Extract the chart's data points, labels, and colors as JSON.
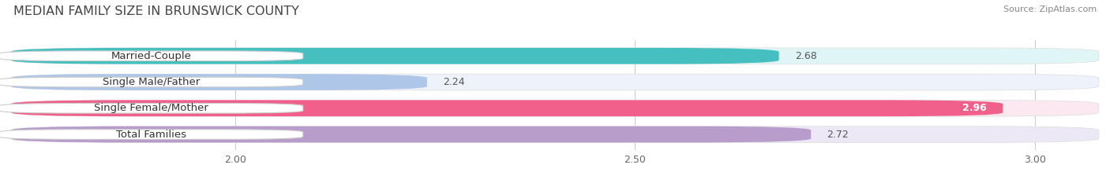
{
  "title": "MEDIAN FAMILY SIZE IN BRUNSWICK COUNTY",
  "source": "Source: ZipAtlas.com",
  "categories": [
    "Married-Couple",
    "Single Male/Father",
    "Single Female/Mother",
    "Total Families"
  ],
  "values": [
    2.68,
    2.24,
    2.96,
    2.72
  ],
  "bar_colors": [
    "#45bfbf",
    "#aec6e8",
    "#f0608a",
    "#b89ccc"
  ],
  "bar_bg_colors": [
    "#e0f5f5",
    "#eef2fb",
    "#fce8f0",
    "#ede8f5"
  ],
  "xlim_data": [
    1.72,
    3.08
  ],
  "xstart": 1.72,
  "xticks": [
    2.0,
    2.5,
    3.0
  ],
  "xtick_labels": [
    "2.00",
    "2.50",
    "3.00"
  ],
  "background_color": "#ffffff",
  "label_fontsize": 9.5,
  "value_fontsize": 9.0,
  "title_fontsize": 11.5
}
